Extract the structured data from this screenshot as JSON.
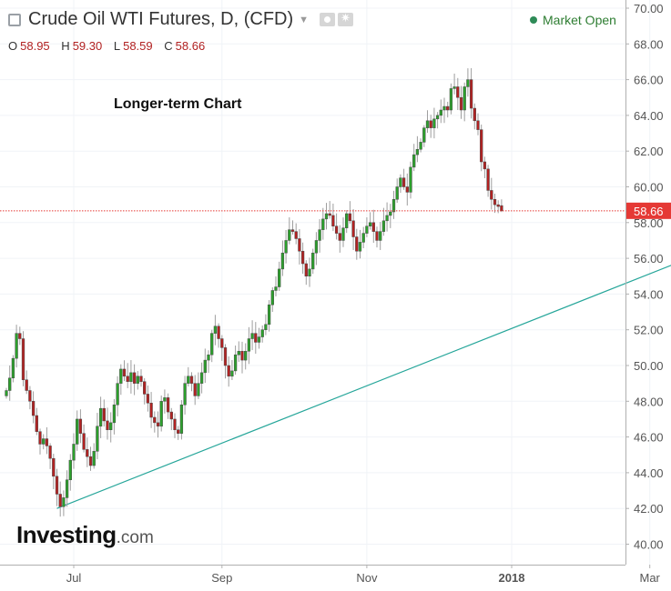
{
  "header": {
    "title": "Crude Oil WTI Futures, D, (CFD)",
    "ohlc": [
      {
        "label": "O",
        "value": "58.95"
      },
      {
        "label": "H",
        "value": "59.30"
      },
      {
        "label": "L",
        "value": "58.59"
      },
      {
        "label": "C",
        "value": "58.66"
      }
    ],
    "market_status": "Market Open"
  },
  "annotation": "Longer-term Chart",
  "branding": {
    "name": "Investing",
    "domain": ".com"
  },
  "colors": {
    "up": "#2ca02c",
    "down": "#b22222",
    "wick": "#9e9e9e",
    "trendline": "#26a69a",
    "price_line": "#e53935",
    "price_label_bg": "#e53935",
    "market_dot": "#2e8b57"
  },
  "chart_data": {
    "type": "candlestick",
    "title": "Crude Oil WTI Futures, D, (CFD)",
    "ylim": [
      40,
      70
    ],
    "y_ticks": [
      40,
      42,
      44,
      46,
      48,
      50,
      52,
      54,
      56,
      58,
      60,
      62,
      64,
      66,
      68,
      70
    ],
    "y_tick_labels": [
      "40.00",
      "42.00",
      "44.00",
      "46.00",
      "48.00",
      "50.00",
      "52.00",
      "54.00",
      "56.00",
      "58.00",
      "60.00",
      "62.00",
      "64.00",
      "66.00",
      "68.00",
      "70.00"
    ],
    "x_tick_labels": [
      {
        "label": "Jul",
        "bar": 20
      },
      {
        "label": "Sep",
        "bar": 64
      },
      {
        "label": "Nov",
        "bar": 107
      },
      {
        "label": "2018",
        "bar": 150
      },
      {
        "label": "Mar",
        "bar": 191
      }
    ],
    "current_price": 58.66,
    "current_price_label": "58.66",
    "trendline": [
      {
        "bar": 15,
        "price": 42.0
      },
      {
        "bar": 212,
        "price": 56.7
      }
    ],
    "close": [
      48.6,
      49.3,
      50.4,
      51.8,
      51.5,
      49.2,
      48.6,
      48.0,
      47.2,
      46.3,
      45.6,
      45.9,
      45.5,
      44.8,
      43.8,
      42.8,
      42.1,
      42.6,
      43.6,
      44.7,
      45.6,
      47.0,
      46.2,
      45.3,
      44.9,
      44.4,
      45.2,
      46.6,
      47.6,
      46.9,
      46.4,
      46.8,
      47.8,
      49.0,
      49.8,
      49.4,
      49.1,
      49.6,
      49.0,
      49.4,
      49.1,
      48.4,
      47.9,
      47.1,
      46.8,
      46.6,
      48.0,
      48.2,
      47.4,
      47.0,
      46.4,
      46.2,
      47.8,
      49.0,
      49.4,
      49.0,
      48.3,
      49.0,
      49.6,
      50.3,
      50.6,
      51.8,
      52.2,
      51.5,
      51.0,
      50.0,
      49.4,
      49.7,
      50.6,
      50.8,
      50.3,
      50.8,
      51.5,
      51.8,
      51.3,
      51.6,
      52.0,
      52.3,
      53.4,
      54.2,
      54.4,
      55.4,
      56.3,
      57.0,
      57.6,
      57.5,
      57.1,
      56.4,
      55.7,
      55.0,
      55.4,
      56.3,
      57.0,
      57.6,
      58.2,
      58.5,
      58.4,
      57.8,
      57.4,
      57.0,
      57.7,
      58.5,
      58.1,
      57.2,
      56.4,
      56.9,
      57.4,
      57.8,
      58.0,
      57.5,
      57.0,
      57.5,
      58.1,
      58.4,
      58.6,
      59.3,
      60.0,
      60.5,
      60.0,
      59.7,
      61.1,
      61.8,
      62.1,
      62.5,
      63.3,
      63.7,
      63.3,
      63.8,
      64.0,
      64.3,
      64.5,
      64.3,
      65.5,
      65.6,
      65.0,
      64.3,
      65.6,
      66.0,
      64.4,
      63.7,
      63.2,
      61.4,
      61.0,
      59.8,
      59.3,
      59.0,
      58.9,
      58.66
    ],
    "ohlc_last_bar": {
      "open": 58.95,
      "high": 59.3,
      "low": 58.59,
      "close": 58.66
    }
  }
}
